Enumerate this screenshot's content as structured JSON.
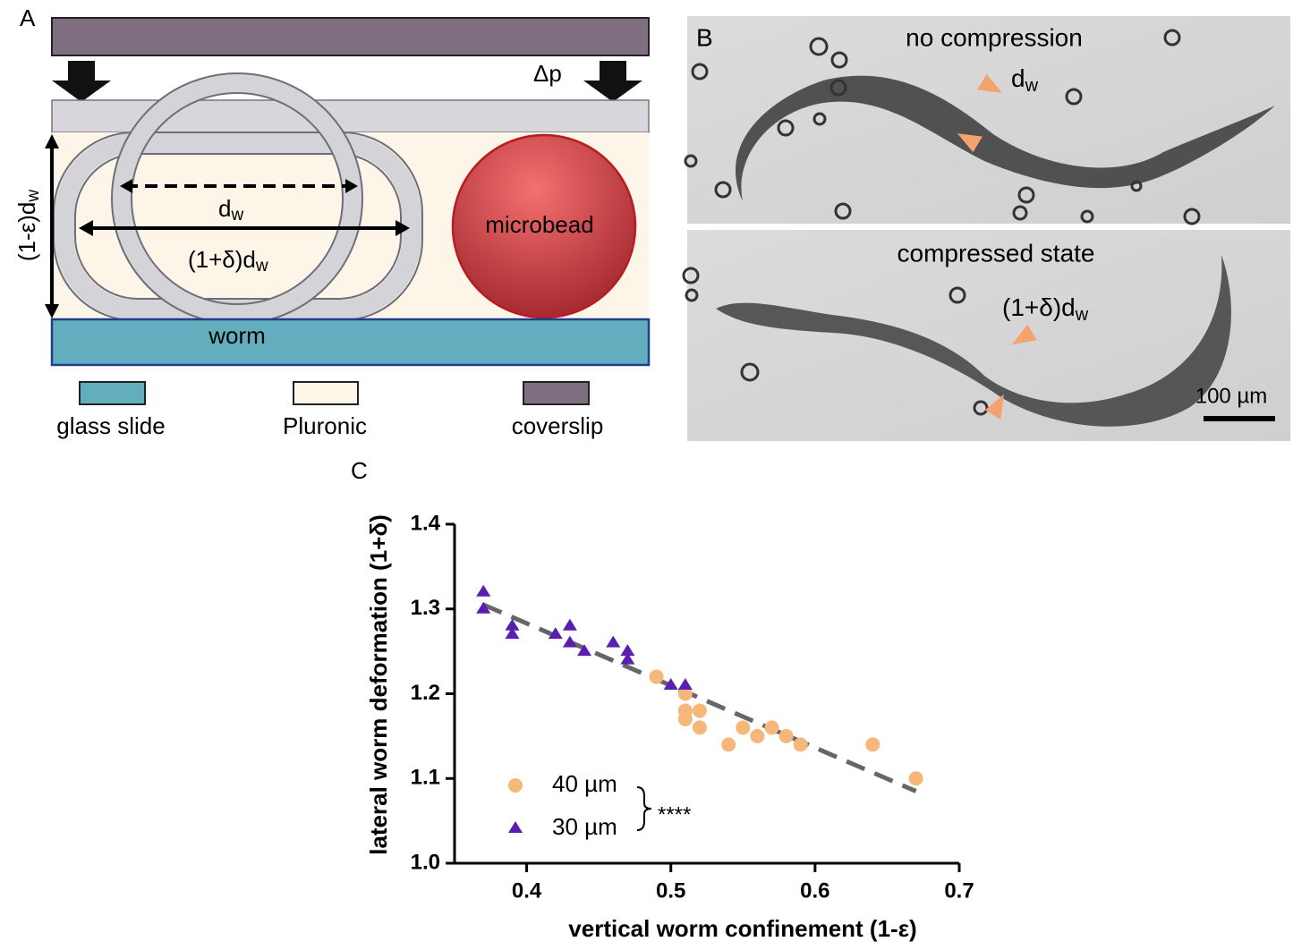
{
  "panel_a": {
    "label": "A",
    "pressure": "Δp",
    "height_label": {
      "main": "(1-ε)d",
      "sub": "w"
    },
    "width_label": {
      "main": "d",
      "sub": "w"
    },
    "deformed_label": {
      "main": "(1+δ)d",
      "sub": "w"
    },
    "bead_label": "microbead",
    "worm_label": "worm",
    "legend": [
      "glass slide",
      "Pluronic",
      "coverslip"
    ]
  },
  "panel_b": {
    "label": "B",
    "top_title": "no compression",
    "top_marker": {
      "main": "d",
      "sub": "w"
    },
    "bottom_title": "compressed state",
    "bottom_marker": {
      "main": "(1+δ)d",
      "sub": "w"
    },
    "scale_bar": "100 µm"
  },
  "chart_data": {
    "type": "scatter",
    "panel_label": "C",
    "x_label": "vertical worm confinement (1-ε)",
    "y_label": "lateral worm deformation (1+δ)",
    "xlim": [
      0.35,
      0.7
    ],
    "ylim": [
      1.0,
      1.4
    ],
    "xticks": [
      0.4,
      0.5,
      0.6,
      0.7
    ],
    "yticks": [
      {
        "value": 1,
        "label": "1.0"
      },
      1.1,
      1.2,
      1.3,
      1.4
    ],
    "series": [
      {
        "name": "40 µm",
        "color": "#f5b77a",
        "marker": "circle",
        "x": [
          0.49,
          0.51,
          0.51,
          0.51,
          0.52,
          0.52,
          0.54,
          0.55,
          0.56,
          0.57,
          0.58,
          0.59,
          0.64,
          0.67
        ],
        "values": [
          1.22,
          1.2,
          1.18,
          1.17,
          1.18,
          1.16,
          1.14,
          1.16,
          1.15,
          1.16,
          1.15,
          1.14,
          1.14,
          1.1
        ]
      },
      {
        "name": "30 µm",
        "color": "#5a1fb0",
        "marker": "triangle",
        "x": [
          0.37,
          0.37,
          0.39,
          0.39,
          0.42,
          0.43,
          0.43,
          0.44,
          0.46,
          0.47,
          0.47,
          0.5,
          0.51
        ],
        "values": [
          1.32,
          1.3,
          1.28,
          1.27,
          1.27,
          1.28,
          1.26,
          1.25,
          1.26,
          1.25,
          1.24,
          1.21,
          1.21
        ]
      }
    ],
    "fit_line": {
      "x": [
        0.37,
        0.67
      ],
      "values": [
        1.305,
        1.085
      ],
      "color": "#666666"
    },
    "significance": "****"
  }
}
